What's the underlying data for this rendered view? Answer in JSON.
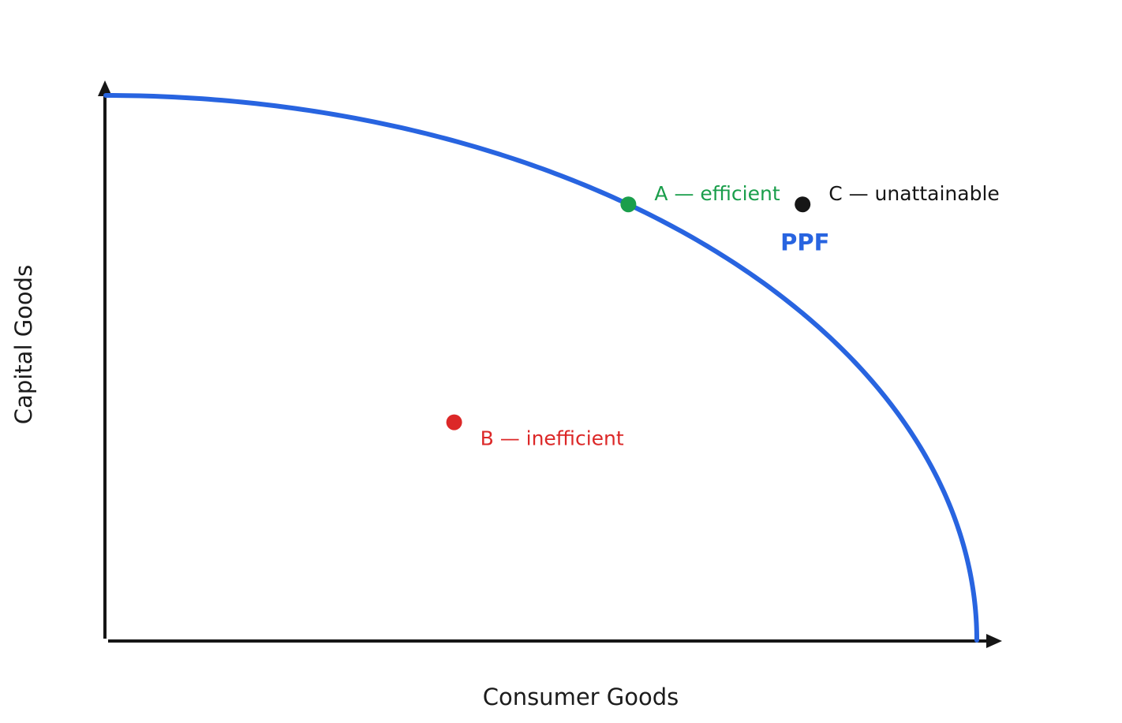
{
  "chart_data": {
    "type": "line",
    "title": "",
    "xlabel": "Consumer Goods",
    "ylabel": "Capital Goods",
    "xlim": [
      0,
      1
    ],
    "ylim": [
      0,
      1
    ],
    "grid": false,
    "ticks": false,
    "series": [
      {
        "name": "PPF",
        "color": "#2864e0",
        "curve": "concave quarter ellipse from (0, 1) to (1, 0)",
        "x": [
          0,
          0.1,
          0.2,
          0.3,
          0.4,
          0.5,
          0.6,
          0.7,
          0.8,
          0.9,
          0.95,
          1
        ],
        "y": [
          1,
          0.995,
          0.98,
          0.954,
          0.917,
          0.866,
          0.8,
          0.714,
          0.6,
          0.436,
          0.312,
          0
        ]
      }
    ],
    "points": [
      {
        "label": "A — efficient",
        "x": 0.6,
        "y": 0.8,
        "color": "#1a9e4b",
        "label_position": "right-above"
      },
      {
        "label": "B — inefficient",
        "x": 0.4,
        "y": 0.4,
        "color": "#dc2828",
        "label_position": "right-below"
      },
      {
        "label": "C — unattainable",
        "x": 0.8,
        "y": 0.8,
        "color": "#161616",
        "label_position": "right-above"
      }
    ],
    "annotations": [
      {
        "text": "PPF",
        "x": 0.77,
        "y": 0.73,
        "color": "#2864e0"
      }
    ]
  }
}
